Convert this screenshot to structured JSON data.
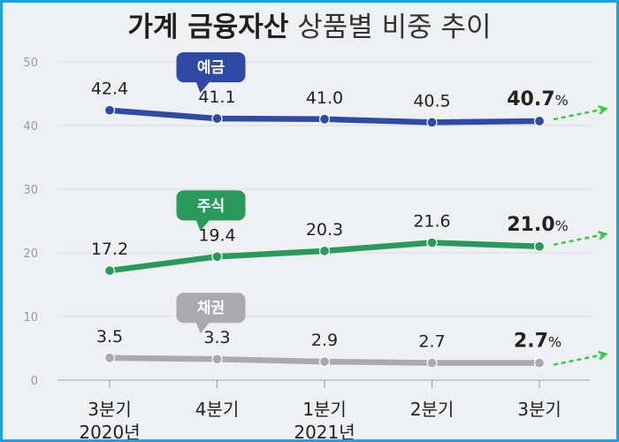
{
  "title": {
    "bold": "가계 금융자산",
    "light": "상품별 비중 추이"
  },
  "chart_data": {
    "type": "line",
    "categories": [
      "3분기",
      "4분기",
      "1분기",
      "2분기",
      "3분기"
    ],
    "year_labels": [
      "2020년",
      "",
      "2021년",
      "",
      ""
    ],
    "ylim": [
      0,
      50
    ],
    "yticks": [
      0,
      10,
      20,
      30,
      40,
      50
    ],
    "grid": true,
    "series": [
      {
        "name": "예금",
        "values": [
          42.4,
          41.1,
          41.0,
          40.5,
          40.7
        ],
        "labels": [
          "42.4",
          "41.1",
          "41.0",
          "40.5",
          "40.7"
        ],
        "color": "#2f4aa6",
        "text_color": "#222222"
      },
      {
        "name": "주식",
        "values": [
          17.2,
          19.4,
          20.3,
          21.6,
          21.0
        ],
        "labels": [
          "17.2",
          "19.4",
          "20.3",
          "21.6",
          "21.0"
        ],
        "color": "#2a9a5c",
        "text_color": "#222222"
      },
      {
        "name": "채권",
        "values": [
          3.5,
          3.3,
          2.9,
          2.7,
          2.7
        ],
        "labels": [
          "3.5",
          "3.3",
          "2.9",
          "2.7",
          "2.7"
        ],
        "color": "#a9a9ae",
        "text_color": "#8a8a8a"
      }
    ],
    "unit_suffix": "%",
    "trend_arrow_color": "#33cc44"
  }
}
